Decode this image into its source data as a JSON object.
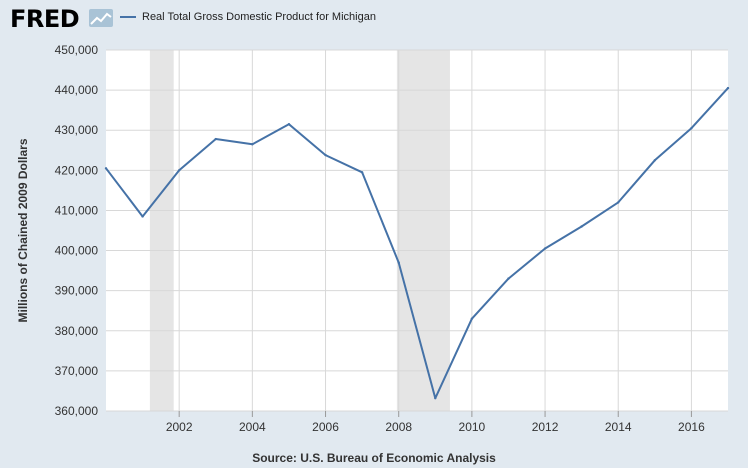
{
  "header": {
    "logo_text": "FRED",
    "logo_badge_icon": "line-chart-badge-icon"
  },
  "colors": {
    "background": "#e1e9f0",
    "plot_background": "#ffffff",
    "series_line": "#4572a7",
    "recession_band": "#e5e5e5",
    "grid": "#d8d8d8"
  },
  "chart_data": {
    "type": "line",
    "title": "",
    "xlabel": "",
    "ylabel": "Millions of Chained 2009 Dollars",
    "source": "Source: U.S. Bureau of Economic Analysis",
    "legend_position": "top-left",
    "grid": true,
    "xlim": [
      2000,
      2017
    ],
    "ylim": [
      360000,
      450000
    ],
    "x_ticks": [
      2002,
      2004,
      2006,
      2008,
      2010,
      2012,
      2014,
      2016
    ],
    "y_ticks": [
      360000,
      370000,
      380000,
      390000,
      400000,
      410000,
      420000,
      430000,
      440000,
      450000
    ],
    "y_tick_labels": [
      "360,000",
      "370,000",
      "380,000",
      "390,000",
      "400,000",
      "410,000",
      "420,000",
      "430,000",
      "440,000",
      "450,000"
    ],
    "recessions": [
      [
        2001.2,
        2001.85
      ],
      [
        2007.95,
        2009.4
      ]
    ],
    "series": [
      {
        "name": "Real Total Gross Domestic Product for Michigan",
        "x": [
          2000,
          2001,
          2002,
          2003,
          2004,
          2005,
          2006,
          2007,
          2008,
          2009,
          2010,
          2011,
          2012,
          2013,
          2014,
          2015,
          2016,
          2017
        ],
        "values": [
          420500,
          408500,
          420000,
          427800,
          426500,
          431500,
          423800,
          419500,
          397000,
          363200,
          383000,
          393000,
          400500,
          406000,
          412000,
          422500,
          430500,
          440500
        ]
      }
    ]
  }
}
